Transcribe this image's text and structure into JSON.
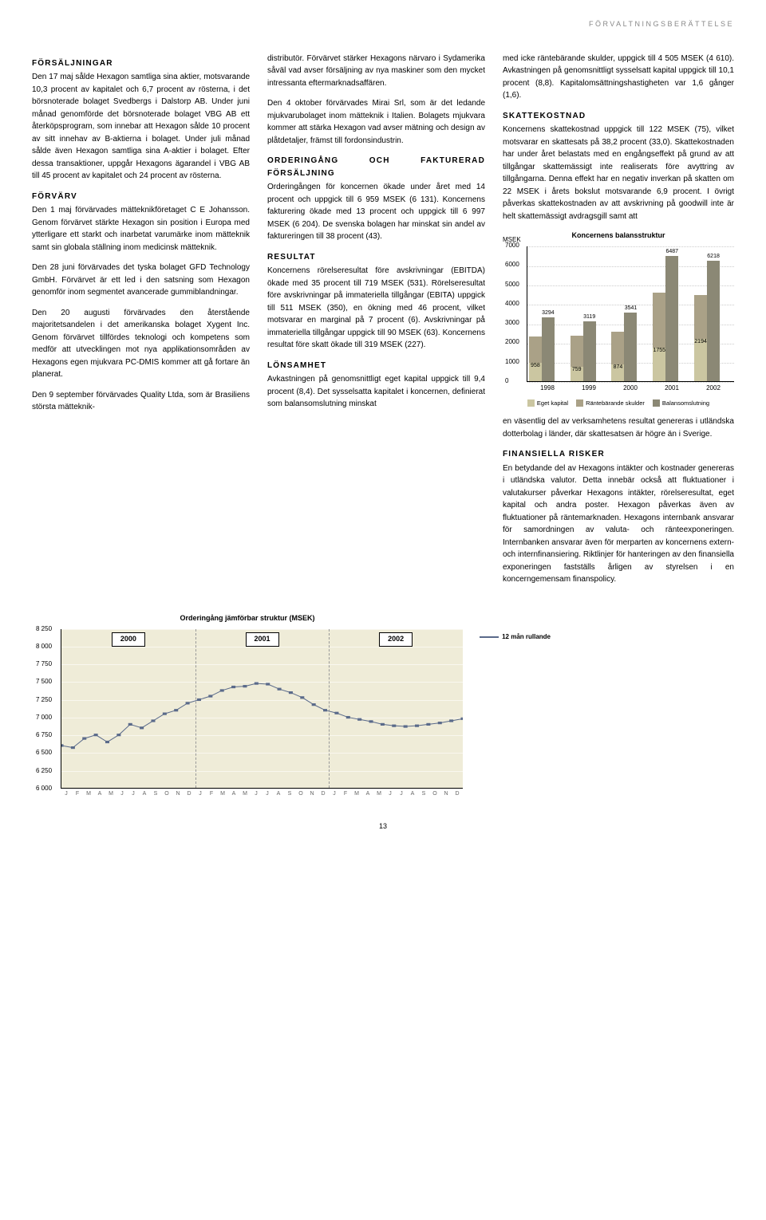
{
  "header": "FÖRVALTNINGSBERÄTTELSE",
  "page_number": "13",
  "col1": {
    "h_forsaljningar": "FÖRSÄLJNINGAR",
    "p_fors1": "Den 17 maj sålde Hexagon samtliga sina aktier, motsvarande 10,3 procent av kapitalet och 6,7 procent av rösterna, i det börsnoterade bolaget Svedbergs i Dalstorp AB. Under juni månad genomförde det börsnoterade bolaget VBG AB ett återköpsprogram, som innebar att Hexagon sålde 10 procent av sitt innehav av B-aktierna i bolaget. Under juli månad sålde även Hexagon samtliga sina A-aktier i bolaget. Efter dessa transaktioner, uppgår Hexagons ägarandel i VBG AB till 45 procent av kapitalet och 24 procent av rösterna.",
    "h_forvarv": "FÖRVÄRV",
    "p_forv1": "Den 1 maj förvärvades mätteknikföretaget C E Johansson. Genom förvärvet stärkte Hexagon sin position i Europa med ytterligare ett starkt och inarbetat varumärke inom mätteknik samt sin globala ställning inom medicinsk mätteknik.",
    "p_forv2": "Den 28 juni förvärvades det tyska bolaget GFD Technology GmbH. Förvärvet är ett led i den satsning som Hexagon genomför inom segmentet avancerade gummiblandningar.",
    "p_forv3": "Den 20 augusti förvärvades den återstående majoritetsandelen i det amerikanska bolaget Xygent Inc. Genom förvärvet tillfördes teknologi och kompetens som medför att utvecklingen mot nya applikationsområden av Hexagons egen mjukvara PC-DMIS kommer att gå fortare än planerat.",
    "p_forv4": "Den 9 september förvärvades Quality Ltda, som är Brasiliens största mätteknik-"
  },
  "col2": {
    "p_cont": "distributör. Förvärvet stärker Hexagons närvaro i Sydamerika såväl vad avser försäljning av nya maskiner som den mycket intressanta eftermarknadsaffären.",
    "p_mirai": "Den 4 oktober förvärvades Mirai Srl, som är det ledande mjukvarubolaget inom mätteknik i Italien. Bolagets mjukvara kommer att stärka Hexagon vad avser mätning och design av plåtdetaljer, främst till fordonsindustrin.",
    "h_order": "ORDERINGÅNG OCH FAKTURERAD FÖRSÄLJNING",
    "p_order": "Orderingången för koncernen ökade under året med 14 procent och uppgick till 6 959 MSEK (6 131). Koncernens fakturering ökade med 13 procent och uppgick till 6 997 MSEK (6 204). De svenska bolagen har minskat sin andel av faktureringen till 38 procent (43).",
    "h_resultat": "RESULTAT",
    "p_resultat": "Koncernens rörelseresultat före avskrivningar (EBITDA) ökade med 35 procent till 719 MSEK (531). Rörelseresultat före avskrivningar på immateriella tillgångar (EBITA) uppgick till 511 MSEK (350), en ökning med 46 procent, vilket motsvarar en marginal på 7 procent (6). Avskrivningar på immateriella tillgångar uppgick till 90 MSEK (63). Koncernens resultat före skatt ökade till 319 MSEK (227).",
    "h_lonsamhet": "LÖNSAMHET",
    "p_lonsamhet": "Avkastningen på genomsnittligt eget kapital uppgick till 9,4 procent (8,4). Det sysselsatta kapitalet i koncernen, definierat som balansomslutning minskat"
  },
  "col3": {
    "p_cont": "med icke räntebärande skulder, uppgick till 4 505 MSEK (4 610). Avkastningen på genomsnittligt sysselsatt kapital uppgick till 10,1 procent (8,8). Kapitalomsättningshastigheten var 1,6 gånger (1,6).",
    "h_skatt": "SKATTEKOSTNAD",
    "p_skatt": "Koncernens skattekostnad uppgick till 122 MSEK (75), vilket motsvarar en skattesats på 38,2 procent (33,0). Skattekostnaden har under året belastats med en engångseffekt på grund av att tillgångar skattemässigt inte realiserats före avyttring av tillgångarna. Denna effekt har en negativ inverkan på skatten om 22 MSEK i årets bokslut motsvarande 6,9 procent. I övrigt påverkas skattekostnaden av att avskrivning på goodwill inte är helt skattemässigt avdragsgill samt att",
    "p_skatt2": "en väsentlig del av verksamhetens resultat genereras i utländska dotterbolag i länder, där skattesatsen är högre än i Sverige.",
    "h_fin": "FINANSIELLA RISKER",
    "p_fin": "En betydande del av Hexagons intäkter och kostnader genereras i utländska valutor. Detta innebär också att fluktuationer i valutakurser påverkar Hexagons intäkter, rörelseresultat, eget kapital och andra poster. Hexagon påverkas även av fluktuationer på räntemarknaden. Hexagons internbank ansvarar för samordningen av valuta- och ränteexponeringen. Internbanken ansvarar även för merparten av koncernens extern- och internfinansiering. Riktlinjer för hanteringen av den finansiella exponeringen fastställs årligen av styrelsen i en koncerngemensam finanspolicy."
  },
  "barchart": {
    "title": "Koncernens balansstruktur",
    "unit_label": "MSEK",
    "ylim": 7000,
    "ytick_step": 1000,
    "yticks": [
      "0",
      "1000",
      "2000",
      "3000",
      "4000",
      "5000",
      "6000",
      "7000"
    ],
    "years": [
      "1998",
      "1999",
      "2000",
      "2001",
      "2002"
    ],
    "series": {
      "eget_kapital": {
        "label": "Eget kapital",
        "color": "#cbc6a1",
        "values": [
          958,
          759,
          874,
          1755,
          2194
        ]
      },
      "rantebarande": {
        "label": "Räntebärande skulder",
        "color": "#aaa187",
        "values": [
          1363,
          1610,
          1679,
          2825,
          2275
        ]
      },
      "eget_top": {
        "values": [
          2321,
          2369,
          2553,
          4580,
          4469
        ]
      },
      "balans": {
        "label": "Balansomslutning",
        "color": "#8b8875",
        "values": [
          3294,
          3119,
          3541,
          6487,
          6218
        ]
      }
    }
  },
  "linechart": {
    "title": "Orderingång jämförbar struktur (MSEK)",
    "legend": "12 mån rullande",
    "ymin": 6000,
    "ymax": 8250,
    "ytick_step": 250,
    "yticks": [
      "6 000",
      "6 250",
      "6 500",
      "6 750",
      "7 000",
      "7 250",
      "7 500",
      "7 750",
      "8 000",
      "8 250"
    ],
    "years": [
      "2000",
      "2001",
      "2002"
    ],
    "months": [
      "J",
      "F",
      "M",
      "A",
      "M",
      "J",
      "J",
      "A",
      "S",
      "O",
      "N",
      "D",
      "J",
      "F",
      "M",
      "A",
      "M",
      "J",
      "J",
      "A",
      "S",
      "O",
      "N",
      "D",
      "J",
      "F",
      "M",
      "A",
      "M",
      "J",
      "J",
      "A",
      "S",
      "O",
      "N",
      "D"
    ],
    "line_color": "#5a6a8a",
    "bg_color": "#efecd8",
    "values": [
      6600,
      6570,
      6700,
      6750,
      6650,
      6750,
      6900,
      6850,
      6950,
      7050,
      7100,
      7200,
      7250,
      7300,
      7380,
      7430,
      7440,
      7480,
      7470,
      7400,
      7350,
      7280,
      7180,
      7100,
      7060,
      7000,
      6970,
      6940,
      6900,
      6880,
      6870,
      6880,
      6900,
      6920,
      6950,
      6980
    ]
  }
}
